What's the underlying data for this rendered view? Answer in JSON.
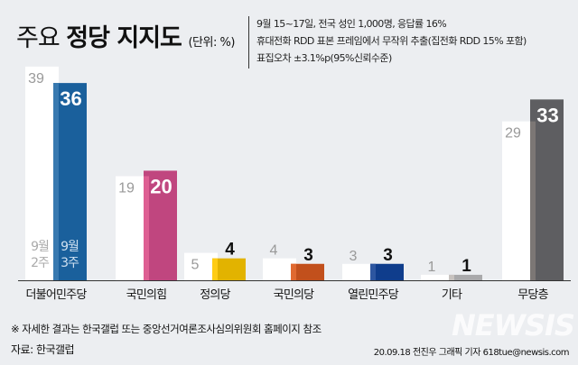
{
  "title": {
    "normal": "주요",
    "bold": "정당 지지도",
    "unit": "(단위: %)"
  },
  "notes": [
    "9월 15~17일, 전국 성인 1,000명, 응답률 16%",
    "휴대전화 RDD 표본 프레임에서 무작위 추출(집전화 RDD 15% 포함)",
    "표집오차 ±3.1%p(95%신뢰수준)"
  ],
  "chart_data": {
    "type": "bar",
    "title": "주요 정당 지지도",
    "unit": "%",
    "categories": [
      "더불어민주당",
      "국민의힘",
      "정의당",
      "국민의당",
      "열린민주당",
      "기타",
      "무당층"
    ],
    "series": [
      {
        "name": "9월 2주",
        "label_lines": [
          "9월",
          "2주"
        ],
        "values": [
          39,
          19,
          5,
          4,
          3,
          1,
          29
        ],
        "color": "#ffffff"
      },
      {
        "name": "9월 3주",
        "label_lines": [
          "9월",
          "3주"
        ],
        "values": [
          36,
          20,
          4,
          3,
          3,
          1,
          33
        ],
        "colors": [
          "#1a609c",
          "#c0467f",
          "#e2b300",
          "#c2501c",
          "#0f3d8c",
          "#a9a9ab",
          "#5e5e61"
        ]
      }
    ],
    "ylim": [
      0,
      40
    ]
  },
  "footer": {
    "note": "※ 자세한 결과는 한국갤럽 또는 중앙선거여론조사심의위원회 홈페이지 참조",
    "source": "자료: 한국갤럽",
    "credit": "20.09.18 전진우 그래픽 기자 618tue@newsis.com",
    "logo": "NEWSIS"
  }
}
